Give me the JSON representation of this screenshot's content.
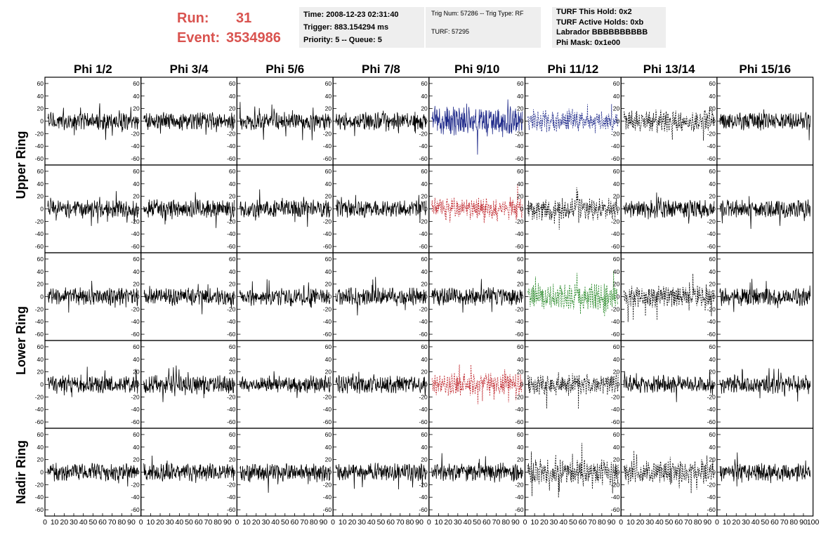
{
  "header": {
    "run_label": "Run:",
    "run_value": "31",
    "event_label": "Event:",
    "event_value": "3534986",
    "info1": [
      "Time: 2008-12-23 02:31:40",
      "Trigger: 883.154294 ms",
      "Priority: 5 -- Queue: 5"
    ],
    "info2": [
      "Trig Num: 57286 -- Trig Type: RF",
      "TURF: 57295"
    ],
    "info3": [
      "TURF This Hold: 0x2",
      "TURF Active Holds: 0xb",
      "Labrador BBBBBBBBBB",
      "Phi Mask: 0x1e00"
    ]
  },
  "colors": {
    "run_text": "#d9534f",
    "blue": "#1f2a8a",
    "red": "#c0272d",
    "green": "#2a8a2a",
    "black": "#000000"
  },
  "chart_data": {
    "type": "line",
    "columns": [
      "Phi 1/2",
      "Phi 3/4",
      "Phi 5/6",
      "Phi 7/8",
      "Phi 9/10",
      "Phi 11/12",
      "Phi 13/14",
      "Phi 15/16"
    ],
    "rows": [
      "Upper Ring",
      "Upper Ring",
      "Lower Ring",
      "Lower Ring",
      "Nadir Ring"
    ],
    "row_labels": [
      {
        "label": "Upper Ring",
        "rows": [
          0,
          1
        ]
      },
      {
        "label": "Lower Ring",
        "rows": [
          2,
          3
        ]
      },
      {
        "label": "Nadir Ring",
        "rows": [
          4
        ]
      }
    ],
    "xlim": [
      0,
      100
    ],
    "ylim": [
      -70,
      70
    ],
    "yticks": [
      -60,
      -40,
      -20,
      0,
      20,
      40,
      60
    ],
    "xticks": [
      "0",
      "10",
      "20",
      "30",
      "40",
      "50",
      "60",
      "70",
      "80",
      "90",
      "100"
    ],
    "cell_styles": {
      "0-4": {
        "color": "blue",
        "style": "solid",
        "amp": 1.3
      },
      "0-5": {
        "color": "blue",
        "style": "dashed",
        "amp": 1.0
      },
      "0-6": {
        "color": "black",
        "style": "dashed",
        "amp": 1.0
      },
      "1-4": {
        "color": "red",
        "style": "dashed",
        "amp": 1.0
      },
      "1-5": {
        "color": "black",
        "style": "dashed",
        "amp": 1.0
      },
      "2-5": {
        "color": "green",
        "style": "dashed",
        "amp": 1.2
      },
      "2-6": {
        "color": "black",
        "style": "dashed",
        "amp": 1.0
      },
      "3-4": {
        "color": "red",
        "style": "dashed",
        "amp": 1.0
      },
      "3-5": {
        "color": "black",
        "style": "dashed",
        "amp": 1.0
      },
      "4-5": {
        "color": "black",
        "style": "dashed",
        "amp": 1.2
      },
      "4-6": {
        "color": "black",
        "style": "dashed",
        "amp": 1.0
      }
    },
    "default_style": {
      "color": "black",
      "style": "solid",
      "amp": 0.8
    },
    "grid": false
  }
}
